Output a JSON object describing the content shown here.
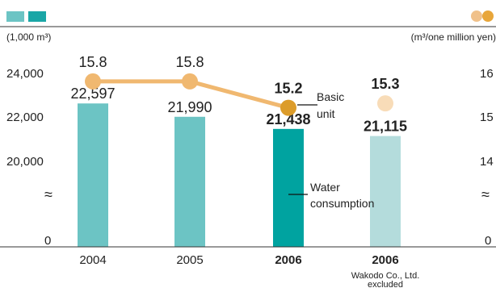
{
  "legend": {
    "bar_swatches": [
      "#6cc4c4",
      "#1aa6a6"
    ],
    "dot_swatches": [
      "#f0c18a",
      "#e8a63a"
    ]
  },
  "left_axis": {
    "unit": "(1,000 m³)",
    "ticks": [
      "24,000",
      "22,000",
      "20,000",
      "0"
    ],
    "break_symbol": "≈"
  },
  "right_axis": {
    "unit": "(m³/one million yen)",
    "ticks": [
      "16",
      "15",
      "14",
      "0"
    ],
    "break_symbol": "≈"
  },
  "annotations": {
    "basic_unit": [
      "Basic",
      "unit"
    ],
    "water_consumption": [
      "Water",
      "consumption"
    ]
  },
  "note": [
    "Wakodo Co., Ltd.",
    "excluded"
  ],
  "colors": {
    "bar_light": "#6cc4c4",
    "bar_dark": "#00a3a0",
    "bar_pale": "#b4dcdc",
    "line": "#f0b870",
    "marker": "#f0b870",
    "marker_dark": "#dc9c2a",
    "marker_pale": "#f8dcb8"
  },
  "chart_data": {
    "type": "bar",
    "categories": [
      "2004",
      "2005",
      "2006",
      "2006"
    ],
    "category_bold": [
      false,
      false,
      true,
      true
    ],
    "series": [
      {
        "axis": "left",
        "kind": "bar",
        "values": [
          22597,
          21990,
          21438,
          21115
        ],
        "labels": [
          "22,597",
          "21,990",
          "21,438",
          "21,115"
        ]
      },
      {
        "axis": "right",
        "kind": "line",
        "values": [
          15.8,
          15.8,
          15.2,
          15.3
        ],
        "labels": [
          "15.8",
          "15.8",
          "15.2",
          "15.3"
        ],
        "connected": [
          true,
          true,
          true,
          false
        ]
      }
    ],
    "left_axis_ticks": [
      24000,
      22000,
      20000,
      0
    ],
    "right_axis_ticks": [
      16,
      15,
      14,
      0
    ],
    "axis_break": true
  }
}
